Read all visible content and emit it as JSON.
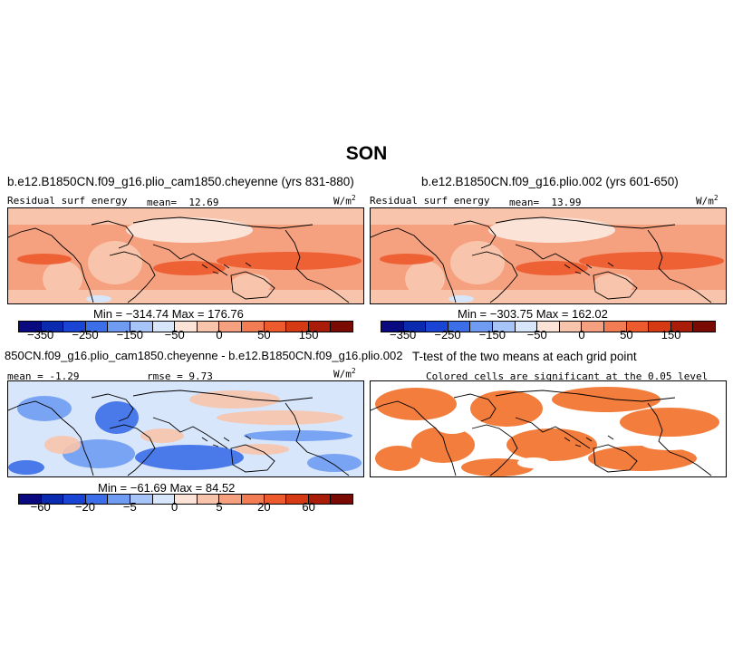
{
  "figure": {
    "title": "SON"
  },
  "units": "W/m",
  "units_sup": "2",
  "panels": {
    "top_left": {
      "case_title": "b.e12.B1850CN.f09_g16.plio_cam1850.cheyenne (yrs 831-880)",
      "variable": "Residual surf energy",
      "mean_label": "mean=",
      "mean_value": "12.69",
      "min_max": "Min = −314.74  Max = 176.76"
    },
    "top_right": {
      "case_title": "b.e12.B1850CN.f09_g16.plio.002 (yrs 601-650)",
      "variable": "Residual surf energy",
      "mean_label": "mean=",
      "mean_value": "13.99",
      "min_max": "Min = −303.75  Max = 162.02"
    },
    "bottom_left": {
      "case_title": "850CN.f09_g16.plio_cam1850.cheyenne - b.e12.B1850CN.f09_g16.plio.002",
      "mean_text": "mean =   -1.29",
      "rmse_text": "rmse =   9.73",
      "min_max": "Min = −61.69  Max = 84.52"
    },
    "bottom_right": {
      "case_title": "T-test of the two means at each grid point",
      "subtitle": "Colored cells are significant at the 0.05 level"
    }
  },
  "colorbars": {
    "field": {
      "colors": [
        "#0a0a80",
        "#0a2ab0",
        "#1a45d4",
        "#3b6ee8",
        "#6f9bf2",
        "#a6c4f7",
        "#d8e6fb",
        "#fbe3d8",
        "#f8c4ab",
        "#f5a07e",
        "#f27d54",
        "#ec5a2e",
        "#d63a14",
        "#a81c08",
        "#7a0a04"
      ],
      "tick_labels": [
        "−350",
        "−250",
        "−150",
        "−50",
        "0",
        "50",
        "150"
      ]
    },
    "diff": {
      "colors": [
        "#0a0a80",
        "#0a2ab0",
        "#1a45d4",
        "#3b6ee8",
        "#6f9bf2",
        "#a6c4f7",
        "#d8e6fb",
        "#fbe3d8",
        "#f8c4ab",
        "#f5a07e",
        "#f27d54",
        "#ec5a2e",
        "#d63a14",
        "#a81c08",
        "#7a0a04"
      ],
      "tick_labels": [
        "−60",
        "−20",
        "−5",
        "0",
        "5",
        "20",
        "60"
      ]
    }
  },
  "map_colors": {
    "field_ocean": "#f5a07e",
    "field_land": "#f8c4ab",
    "field_strong": "#ec5a2e",
    "field_weak": "#fbe3d8",
    "diff_bg": "#d8e6fb",
    "diff_blue": "#6f9bf2",
    "diff_darkblue": "#3b6ee8",
    "diff_red": "#f8c4ab",
    "ttest": "#f27d3c"
  }
}
